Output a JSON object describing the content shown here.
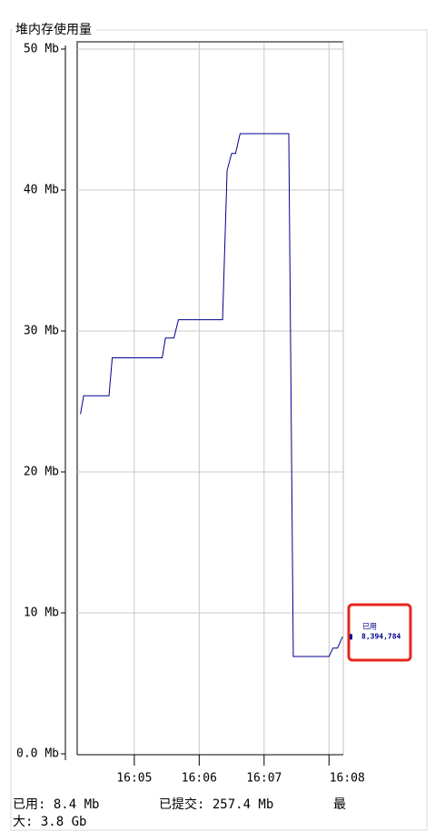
{
  "chart_data": {
    "type": "line",
    "title": "堆内存使用量",
    "x": [
      4.17,
      4.22,
      4.61,
      4.66,
      5.43,
      5.48,
      5.61,
      5.68,
      6.36,
      6.43,
      6.5,
      6.56,
      6.63,
      7.38,
      7.45,
      8.0,
      8.06,
      8.13,
      8.21
    ],
    "series": [
      {
        "name": "已用",
        "color": "#00008b",
        "values": [
          24.1,
          25.4,
          25.4,
          28.1,
          28.1,
          29.5,
          29.5,
          30.8,
          30.8,
          41.4,
          42.6,
          42.6,
          44.0,
          44.0,
          6.9,
          6.9,
          7.5,
          7.5,
          8.3
        ]
      }
    ],
    "legend_value": "8,394,784",
    "xlim": [
      4.12,
      8.22
    ],
    "xticks": [
      {
        "value": 5,
        "label": "16:05"
      },
      {
        "value": 6,
        "label": "16:06"
      },
      {
        "value": 7,
        "label": "16:07"
      },
      {
        "value": 8,
        "label": "16:08"
      }
    ],
    "ylim": [
      0,
      50
    ],
    "yticks": [
      {
        "value": 0,
        "label": "0.0 Mb"
      },
      {
        "value": 10,
        "label": "10 Mb"
      },
      {
        "value": 20,
        "label": "20 Mb"
      },
      {
        "value": 30,
        "label": "30 Mb"
      },
      {
        "value": 40,
        "label": "40 Mb"
      },
      {
        "value": 50,
        "label": "50 Mb"
      }
    ],
    "grid": true,
    "footer": [
      "已用: 8.4 Mb",
      "已提交: 257.4 Mb",
      "最大: 3.8 Gb"
    ]
  }
}
